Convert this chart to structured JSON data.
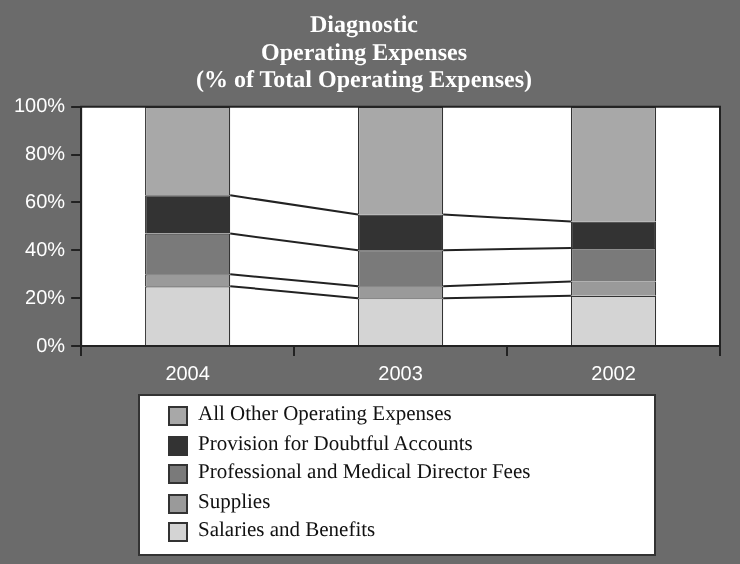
{
  "chart_data": {
    "type": "bar",
    "title": "Diagnostic\nOperating Expenses\n(% of Total Operating Expenses)",
    "categories": [
      "2004",
      "2003",
      "2002"
    ],
    "stacked": true,
    "legend": "bottom",
    "series": [
      {
        "name": "Salaries and Benefits",
        "color": "#d4d4d4",
        "values": [
          25,
          20,
          21
        ]
      },
      {
        "name": "Supplies",
        "color": "#9a9a9a",
        "values": [
          5,
          5,
          6
        ]
      },
      {
        "name": "Professional and Medical Director Fees",
        "color": "#7a7a7a",
        "values": [
          17,
          15,
          14
        ]
      },
      {
        "name": "Provision for Doubtful Accounts",
        "color": "#333333",
        "values": [
          16,
          15,
          11
        ]
      },
      {
        "name": "All Other Operating Expenses",
        "color": "#a8a8a8",
        "values": [
          37,
          45,
          48
        ]
      }
    ],
    "ylim": [
      0,
      100
    ],
    "yticks": [
      {
        "value": 0,
        "label": "0%"
      },
      {
        "value": 20,
        "label": "20%"
      },
      {
        "value": 40,
        "label": "40%"
      },
      {
        "value": 60,
        "label": "60%"
      },
      {
        "value": 80,
        "label": "80%"
      },
      {
        "value": 100,
        "label": "100%"
      }
    ]
  }
}
